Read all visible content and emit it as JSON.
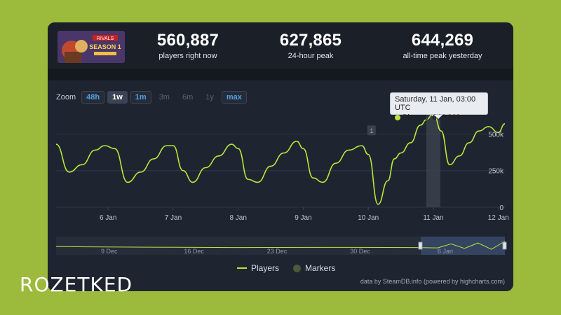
{
  "game": {
    "thumbnail_caption": "SEASON 1"
  },
  "stats": [
    {
      "value": "560,887",
      "label": "players right now"
    },
    {
      "value": "627,865",
      "label": "24-hour peak"
    },
    {
      "value": "644,269",
      "label": "all-time peak yesterday"
    }
  ],
  "zoom": {
    "label": "Zoom",
    "buttons": [
      {
        "label": "48h",
        "state": "active"
      },
      {
        "label": "1w",
        "state": "selected"
      },
      {
        "label": "1m",
        "state": "active"
      },
      {
        "label": "3m",
        "state": "disabled"
      },
      {
        "label": "6m",
        "state": "disabled"
      },
      {
        "label": "1y",
        "state": "disabled"
      },
      {
        "label": "max",
        "state": "active"
      }
    ]
  },
  "tooltip": {
    "date": "Saturday, 11 Jan, 03:00 UTC",
    "series_label": "Players:",
    "value": "644 269"
  },
  "legend": {
    "players": "Players",
    "markers": "Markers"
  },
  "credit": "data by SteamDB.info (powered by highcharts.com)",
  "watermark": "ROZETKED",
  "colors": {
    "line": "#b7e63c",
    "background": "#1f2530",
    "accent_blue": "#4f9fe6"
  },
  "chart_data": {
    "type": "line",
    "x_ticks": [
      "6 Jan",
      "7 Jan",
      "8 Jan",
      "9 Jan",
      "10 Jan",
      "11 Jan",
      "12 Jan"
    ],
    "y_ticks": [
      "0",
      "250k",
      "500k"
    ],
    "ylim": [
      0,
      650000
    ],
    "marker_flag": "1",
    "series": [
      {
        "name": "Players",
        "x": [
          5.2,
          5.4,
          5.6,
          5.8,
          5.95,
          6.1,
          6.3,
          6.5,
          6.7,
          6.9,
          7.0,
          7.15,
          7.3,
          7.5,
          7.7,
          7.9,
          8.0,
          8.15,
          8.3,
          8.5,
          8.7,
          8.9,
          9.0,
          9.15,
          9.3,
          9.5,
          9.7,
          9.9,
          10.0,
          10.15,
          10.3,
          10.4,
          10.5,
          10.65,
          10.8,
          10.9,
          11.0,
          11.12,
          11.25,
          11.4,
          11.55,
          11.7,
          11.85,
          12.0,
          12.1
        ],
        "y": [
          430000,
          240000,
          290000,
          390000,
          420000,
          400000,
          170000,
          240000,
          330000,
          420000,
          420000,
          250000,
          170000,
          270000,
          350000,
          430000,
          400000,
          190000,
          170000,
          280000,
          370000,
          450000,
          400000,
          200000,
          170000,
          300000,
          390000,
          420000,
          360000,
          20000,
          180000,
          330000,
          370000,
          440000,
          560000,
          600000,
          644269,
          520000,
          290000,
          350000,
          440000,
          520000,
          550000,
          510000,
          570000
        ]
      },
      {
        "name": "Overview",
        "x": [
          0,
          0.2,
          0.4,
          0.6,
          0.8,
          0.85,
          0.88,
          0.91,
          0.94,
          0.97,
          1.0
        ],
        "y": [
          0.45,
          0.42,
          0.4,
          0.41,
          0.4,
          0.38,
          0.6,
          0.35,
          0.65,
          0.3,
          0.75
        ]
      }
    ],
    "navigator_ticks": [
      "9 Dec",
      "16 Dec",
      "23 Dec",
      "30 Dec",
      "6 Jan"
    ]
  }
}
